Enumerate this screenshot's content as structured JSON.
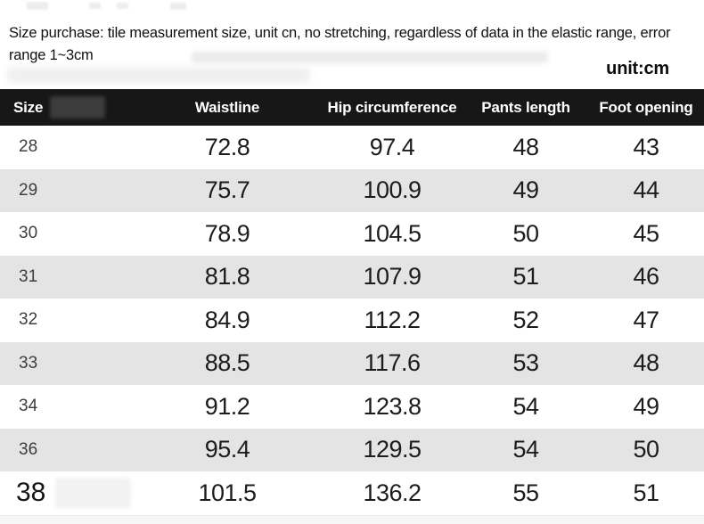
{
  "header": {
    "description_line1": "Size purchase: tile measurement size, unit cn, no stretching, regardless of data in the elastic range, error",
    "description_line2": "range 1~3cm",
    "unit_label": "unit:cm"
  },
  "table": {
    "columns": [
      "Size",
      "Waistline",
      "Hip circumference",
      "Pants length",
      "Foot opening"
    ],
    "rows": [
      [
        "28",
        "72.8",
        "97.4",
        "48",
        "43"
      ],
      [
        "29",
        "75.7",
        "100.9",
        "49",
        "44"
      ],
      [
        "30",
        "78.9",
        "104.5",
        "50",
        "45"
      ],
      [
        "31",
        "81.8",
        "107.9",
        "51",
        "46"
      ],
      [
        "32",
        "84.9",
        "112.2",
        "52",
        "47"
      ],
      [
        "33",
        "88.5",
        "117.6",
        "53",
        "48"
      ],
      [
        "34",
        "91.2",
        "123.8",
        "54",
        "49"
      ],
      [
        "36",
        "95.4",
        "129.5",
        "54",
        "50"
      ],
      [
        "38",
        "101.5",
        "136.2",
        "55",
        "51"
      ]
    ],
    "colors": {
      "header_bg": "#171717",
      "header_text": "#ffffff",
      "row_bg": "#ffffff",
      "row_alt_bg": "#e4e4e4",
      "bottom_strip_bg": "#f6f6f6"
    }
  }
}
